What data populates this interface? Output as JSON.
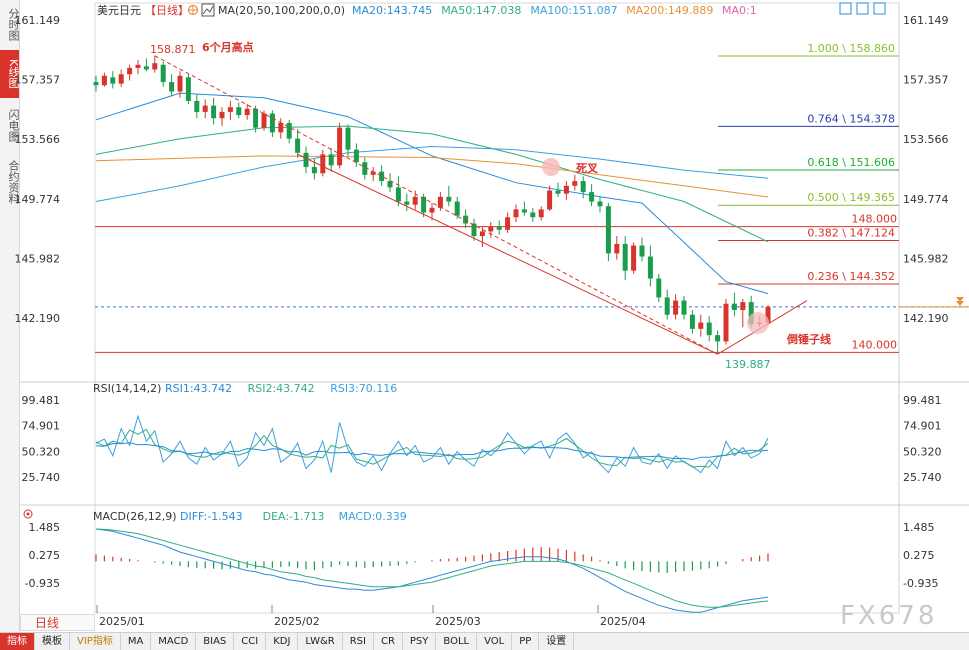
{
  "sidebar": {
    "tabs": [
      {
        "label": "分时图",
        "active": false
      },
      {
        "label": "K线图",
        "active": true
      },
      {
        "label": "闪电图",
        "active": false
      },
      {
        "label": "合约资料",
        "active": false
      }
    ]
  },
  "header": {
    "symbol": "美元日元",
    "period_tag": "【日线】",
    "ma_param": "MA(20,50,100,200,0,0)",
    "ma_values": [
      {
        "label": "MA20:143.745",
        "color": "#2a8bd6"
      },
      {
        "label": "MA50:147.038",
        "color": "#2fae83"
      },
      {
        "label": "MA100:151.087",
        "color": "#3aa0e0"
      },
      {
        "label": "MA200:149.889",
        "color": "#e69138"
      },
      {
        "label": "MA0:1",
        "color": "#e066b0"
      }
    ]
  },
  "price_axis": {
    "left_labels": [
      "161.149",
      "157.357",
      "153.566",
      "149.774",
      "145.982",
      "142.190"
    ],
    "right_labels": [
      "161.149",
      "157.357",
      "153.566",
      "149.774",
      "145.982",
      "142.190"
    ]
  },
  "annotations": {
    "high_value": "158.871",
    "high_text": "6个月高点",
    "death_cross": "死叉",
    "hammer": "倒锤子线",
    "low_value": "139.887",
    "level_148": "148.000",
    "level_140": "140.000"
  },
  "fib_levels": [
    {
      "label": "1.000 \\ 158.860",
      "price": 158.86,
      "color": "#8bbf2e"
    },
    {
      "label": "0.764 \\ 154.378",
      "price": 154.378,
      "color": "#2b3fb0"
    },
    {
      "label": "0.618 \\ 151.606",
      "price": 151.606,
      "color": "#1fae33"
    },
    {
      "label": "0.500 \\ 149.365",
      "price": 149.365,
      "color": "#8bbf2e"
    },
    {
      "label": "0.382 \\ 147.124",
      "price": 147.124,
      "color": "#d9342b"
    },
    {
      "label": "0.236 \\ 144.352",
      "price": 144.352,
      "color": "#d9342b"
    }
  ],
  "rsi": {
    "title": "RSI(14,14,2)",
    "values": [
      {
        "label": "RSI1:43.742",
        "color": "#2a8bd6"
      },
      {
        "label": "RSI2:43.742",
        "color": "#2fae83"
      },
      {
        "label": "RSI3:70.116",
        "color": "#3aa0e0"
      }
    ],
    "axis": [
      "99.481",
      "74.901",
      "50.320",
      "25.740"
    ]
  },
  "macd": {
    "title": "MACD(26,12,9)",
    "values": [
      {
        "label": "DIFF:-1.543",
        "color": "#2a8bd6"
      },
      {
        "label": "DEA:-1.713",
        "color": "#2fae83"
      },
      {
        "label": "MACD:0.339",
        "color": "#3aa0e0"
      }
    ],
    "axis": [
      "1.485",
      "0.275",
      "-0.935"
    ]
  },
  "time_axis": [
    "2025/01",
    "2025/02",
    "2025/03",
    "2025/04"
  ],
  "watermark": "FX678",
  "period_button": "日线",
  "bottom_tabs": [
    "指标",
    "模板",
    "VIP指标",
    "MA",
    "MACD",
    "BIAS",
    "CCI",
    "KDJ",
    "LW&R",
    "RSI",
    "CR",
    "PSY",
    "BOLL",
    "VOL",
    "PP",
    "设置"
  ],
  "chart_data": {
    "type": "candlestick",
    "title": "美元日元 日线",
    "y_range": [
      139.0,
      162.0
    ],
    "candles": [
      [
        157.2,
        157.6,
        156.6,
        157.0
      ],
      [
        157.0,
        157.8,
        156.9,
        157.6
      ],
      [
        157.5,
        157.9,
        156.8,
        157.1
      ],
      [
        157.1,
        158.0,
        156.9,
        157.7
      ],
      [
        157.7,
        158.3,
        157.3,
        158.1
      ],
      [
        158.1,
        158.6,
        157.7,
        158.3
      ],
      [
        158.2,
        158.7,
        157.9,
        158.0
      ],
      [
        158.0,
        158.87,
        157.8,
        158.4
      ],
      [
        158.3,
        158.5,
        156.9,
        157.2
      ],
      [
        157.2,
        157.7,
        156.3,
        156.6
      ],
      [
        156.6,
        157.9,
        156.2,
        157.6
      ],
      [
        157.5,
        157.7,
        155.8,
        156.0
      ],
      [
        156.0,
        156.4,
        154.9,
        155.3
      ],
      [
        155.3,
        156.1,
        154.9,
        155.7
      ],
      [
        155.7,
        156.2,
        154.5,
        154.9
      ],
      [
        154.9,
        155.6,
        154.4,
        155.3
      ],
      [
        155.3,
        156.0,
        154.8,
        155.6
      ],
      [
        155.6,
        155.9,
        154.9,
        155.1
      ],
      [
        155.1,
        155.8,
        154.8,
        155.5
      ],
      [
        155.5,
        155.7,
        154.0,
        154.3
      ],
      [
        154.3,
        155.4,
        154.1,
        155.2
      ],
      [
        155.2,
        155.4,
        153.7,
        154.0
      ],
      [
        154.0,
        154.9,
        153.6,
        154.6
      ],
      [
        154.6,
        154.8,
        153.3,
        153.6
      ],
      [
        153.6,
        154.2,
        152.4,
        152.7
      ],
      [
        152.7,
        153.1,
        151.4,
        151.8
      ],
      [
        151.8,
        152.3,
        151.0,
        151.4
      ],
      [
        151.4,
        152.9,
        151.2,
        152.6
      ],
      [
        152.6,
        153.0,
        151.5,
        151.9
      ],
      [
        151.9,
        154.6,
        151.7,
        154.3
      ],
      [
        154.3,
        154.5,
        152.5,
        152.9
      ],
      [
        152.9,
        153.3,
        151.8,
        152.1
      ],
      [
        152.1,
        152.4,
        151.0,
        151.3
      ],
      [
        151.3,
        151.8,
        150.9,
        151.5
      ],
      [
        151.5,
        151.9,
        150.6,
        150.9
      ],
      [
        150.9,
        151.4,
        150.2,
        150.5
      ],
      [
        150.5,
        151.2,
        149.3,
        149.6
      ],
      [
        149.6,
        150.1,
        149.0,
        149.4
      ],
      [
        149.4,
        150.3,
        149.1,
        149.9
      ],
      [
        149.9,
        150.1,
        148.6,
        148.9
      ],
      [
        148.9,
        149.5,
        148.4,
        149.2
      ],
      [
        149.2,
        150.2,
        149.0,
        149.9
      ],
      [
        149.9,
        150.6,
        149.3,
        149.6
      ],
      [
        149.6,
        149.9,
        148.5,
        148.7
      ],
      [
        148.7,
        149.1,
        147.9,
        148.2
      ],
      [
        148.2,
        148.5,
        147.1,
        147.4
      ],
      [
        147.4,
        148.0,
        146.7,
        147.7
      ],
      [
        147.7,
        148.3,
        147.3,
        148.0
      ],
      [
        148.0,
        148.4,
        147.5,
        147.8
      ],
      [
        147.8,
        148.9,
        147.6,
        148.6
      ],
      [
        148.6,
        149.4,
        148.3,
        149.1
      ],
      [
        149.1,
        149.6,
        148.7,
        148.9
      ],
      [
        148.9,
        149.2,
        148.3,
        148.6
      ],
      [
        148.6,
        149.3,
        148.4,
        149.1
      ],
      [
        149.1,
        150.6,
        149.0,
        150.3
      ],
      [
        150.3,
        150.8,
        149.9,
        150.1
      ],
      [
        150.1,
        150.9,
        149.7,
        150.6
      ],
      [
        150.6,
        151.3,
        150.3,
        150.9
      ],
      [
        150.9,
        151.2,
        149.8,
        150.2
      ],
      [
        150.2,
        150.7,
        149.3,
        149.6
      ],
      [
        149.6,
        149.9,
        148.9,
        149.3
      ],
      [
        149.3,
        149.5,
        145.8,
        146.3
      ],
      [
        146.3,
        147.4,
        145.9,
        146.9
      ],
      [
        146.9,
        147.4,
        144.6,
        145.2
      ],
      [
        145.2,
        147.0,
        145.0,
        146.8
      ],
      [
        146.8,
        147.3,
        145.8,
        146.1
      ],
      [
        146.1,
        146.8,
        144.2,
        144.7
      ],
      [
        144.7,
        145.0,
        143.2,
        143.5
      ],
      [
        143.5,
        144.0,
        142.1,
        142.4
      ],
      [
        142.4,
        143.7,
        142.1,
        143.3
      ],
      [
        143.3,
        143.6,
        142.1,
        142.4
      ],
      [
        142.4,
        142.7,
        141.2,
        141.5
      ],
      [
        141.5,
        142.4,
        141.0,
        141.9
      ],
      [
        141.9,
        142.3,
        140.7,
        141.1
      ],
      [
        141.1,
        141.4,
        139.887,
        140.7
      ],
      [
        140.7,
        143.4,
        140.5,
        143.1
      ],
      [
        143.1,
        143.8,
        142.3,
        142.7
      ],
      [
        142.7,
        143.4,
        141.6,
        143.2
      ],
      [
        143.2,
        143.6,
        141.6,
        141.8
      ],
      [
        141.8,
        142.3,
        141.6,
        141.9
      ],
      [
        141.9,
        143.0,
        141.7,
        142.9
      ]
    ],
    "series": [
      {
        "name": "MA20",
        "color": "#2a8bd6",
        "points": [
          [
            0,
            154.8
          ],
          [
            10,
            156.5
          ],
          [
            20,
            156.2
          ],
          [
            30,
            155.0
          ],
          [
            40,
            152.5
          ],
          [
            50,
            150.8
          ],
          [
            60,
            149.9
          ],
          [
            65,
            149.5
          ],
          [
            70,
            147.0
          ],
          [
            75,
            144.5
          ],
          [
            80,
            143.745
          ]
        ]
      },
      {
        "name": "MA50",
        "color": "#2fae83",
        "points": [
          [
            0,
            152.6
          ],
          [
            10,
            153.6
          ],
          [
            20,
            154.3
          ],
          [
            30,
            154.4
          ],
          [
            40,
            153.9
          ],
          [
            50,
            152.6
          ],
          [
            60,
            151.0
          ],
          [
            70,
            149.6
          ],
          [
            80,
            147.038
          ]
        ]
      },
      {
        "name": "MA100",
        "color": "#3aa0e0",
        "points": [
          [
            0,
            149.6
          ],
          [
            10,
            150.6
          ],
          [
            20,
            151.8
          ],
          [
            30,
            152.7
          ],
          [
            40,
            153.1
          ],
          [
            50,
            152.9
          ],
          [
            60,
            152.3
          ],
          [
            70,
            151.6
          ],
          [
            80,
            151.087
          ]
        ]
      },
      {
        "name": "MA200",
        "color": "#e69138",
        "points": [
          [
            0,
            152.2
          ],
          [
            20,
            152.5
          ],
          [
            40,
            152.4
          ],
          [
            50,
            152.0
          ],
          [
            60,
            151.3
          ],
          [
            70,
            150.6
          ],
          [
            80,
            149.889
          ]
        ]
      }
    ],
    "rsi_points": [
      58,
      62,
      46,
      72,
      56,
      84,
      60,
      70,
      40,
      48,
      60,
      44,
      38,
      54,
      42,
      48,
      60,
      36,
      44,
      68,
      56,
      72,
      40,
      46,
      58,
      34,
      42,
      60,
      30,
      78,
      52,
      40,
      36,
      46,
      32,
      48,
      60,
      46,
      56,
      40,
      44,
      54,
      38,
      50,
      42,
      36,
      52,
      46,
      54,
      68,
      58,
      48,
      56,
      60,
      44,
      62,
      68,
      58,
      44,
      50,
      38,
      30,
      44,
      36,
      54,
      40,
      38,
      48,
      34,
      46,
      40,
      36,
      30,
      42,
      34,
      60,
      46,
      54,
      44,
      48,
      63
    ],
    "macd_hist": [
      0.3,
      0.25,
      0.2,
      0.15,
      0.1,
      0.05,
      0.0,
      -0.05,
      -0.1,
      -0.15,
      -0.2,
      -0.25,
      -0.28,
      -0.3,
      -0.32,
      -0.35,
      -0.32,
      -0.3,
      -0.28,
      -0.32,
      -0.3,
      -0.28,
      -0.25,
      -0.22,
      -0.3,
      -0.35,
      -0.38,
      -0.3,
      -0.25,
      -0.15,
      -0.2,
      -0.25,
      -0.28,
      -0.25,
      -0.22,
      -0.2,
      -0.18,
      -0.12,
      -0.05,
      0.0,
      0.05,
      0.1,
      0.12,
      0.15,
      0.2,
      0.25,
      0.3,
      0.35,
      0.4,
      0.45,
      0.5,
      0.55,
      0.6,
      0.62,
      0.6,
      0.55,
      0.5,
      0.42,
      0.3,
      0.2,
      0.05,
      -0.1,
      -0.2,
      -0.3,
      -0.38,
      -0.42,
      -0.45,
      -0.48,
      -0.5,
      -0.46,
      -0.42,
      -0.4,
      -0.35,
      -0.3,
      -0.22,
      -0.12,
      0.0,
      0.1,
      0.18,
      0.25,
      0.339
    ],
    "macd_diff": [
      1.4,
      1.35,
      1.3,
      1.2,
      1.1,
      1.0,
      0.9,
      0.8,
      0.7,
      0.55,
      0.4,
      0.3,
      0.2,
      0.1,
      0.0,
      -0.1,
      -0.2,
      -0.3,
      -0.4,
      -0.45,
      -0.55,
      -0.6,
      -0.7,
      -0.8,
      -0.85,
      -0.9,
      -1.0,
      -1.05,
      -1.1,
      -1.15,
      -1.2,
      -1.2,
      -1.25,
      -1.25,
      -1.2,
      -1.15,
      -1.1,
      -1.0,
      -0.9,
      -0.8,
      -0.7,
      -0.6,
      -0.5,
      -0.4,
      -0.3,
      -0.2,
      -0.1,
      0.0,
      0.05,
      0.1,
      0.15,
      0.2,
      0.2,
      0.2,
      0.15,
      0.1,
      0.0,
      -0.15,
      -0.3,
      -0.5,
      -0.7,
      -0.9,
      -1.1,
      -1.3,
      -1.45,
      -1.6,
      -1.75,
      -1.9,
      -2.0,
      -2.1,
      -2.15,
      -2.2,
      -2.2,
      -2.1,
      -2.0,
      -1.9,
      -1.8,
      -1.7,
      -1.65,
      -1.6,
      -1.543
    ],
    "macd_dea": [
      1.4,
      1.38,
      1.35,
      1.3,
      1.25,
      1.2,
      1.1,
      1.0,
      0.9,
      0.8,
      0.7,
      0.6,
      0.5,
      0.4,
      0.3,
      0.2,
      0.1,
      0.0,
      -0.1,
      -0.2,
      -0.25,
      -0.35,
      -0.45,
      -0.5,
      -0.55,
      -0.65,
      -0.7,
      -0.8,
      -0.85,
      -0.9,
      -0.95,
      -1.0,
      -1.05,
      -1.1,
      -1.1,
      -1.1,
      -1.1,
      -1.05,
      -1.0,
      -0.95,
      -0.9,
      -0.8,
      -0.7,
      -0.6,
      -0.5,
      -0.4,
      -0.3,
      -0.2,
      -0.15,
      -0.1,
      -0.05,
      0.0,
      0.0,
      0.0,
      0.0,
      0.0,
      -0.05,
      -0.1,
      -0.2,
      -0.3,
      -0.4,
      -0.5,
      -0.65,
      -0.8,
      -0.95,
      -1.1,
      -1.25,
      -1.4,
      -1.55,
      -1.7,
      -1.8,
      -1.9,
      -1.95,
      -1.98,
      -1.98,
      -1.95,
      -1.9,
      -1.85,
      -1.8,
      -1.75,
      -1.713
    ],
    "macd_range": [
      -2.4,
      1.7
    ]
  }
}
